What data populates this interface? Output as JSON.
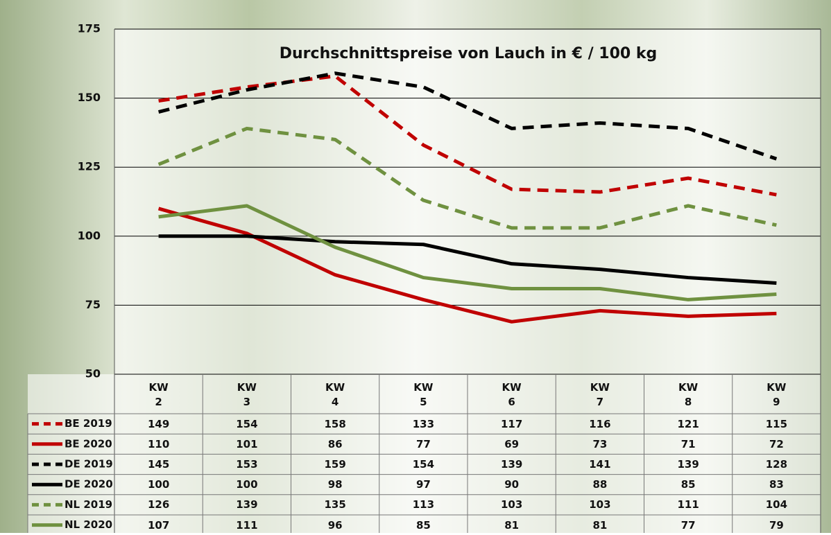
{
  "chart_data": {
    "type": "line",
    "title": "Durchschnittspreise von Lauch in € / 100 kg",
    "categories": [
      "KW\n2",
      "KW\n3",
      "KW\n4",
      "KW\n5",
      "KW\n6",
      "KW\n7",
      "KW\n8",
      "KW\n9"
    ],
    "series": [
      {
        "name": "BE 2019",
        "color": "#c00000",
        "dashed": true,
        "values": [
          149,
          154,
          158,
          133,
          117,
          116,
          121,
          115
        ]
      },
      {
        "name": "BE 2020",
        "color": "#c00000",
        "dashed": false,
        "values": [
          110,
          101,
          86,
          77,
          69,
          73,
          71,
          72
        ]
      },
      {
        "name": "DE 2019",
        "color": "#000000",
        "dashed": true,
        "values": [
          145,
          153,
          159,
          154,
          139,
          141,
          139,
          128
        ]
      },
      {
        "name": "DE 2020",
        "color": "#000000",
        "dashed": false,
        "values": [
          100,
          100,
          98,
          97,
          90,
          88,
          85,
          83
        ]
      },
      {
        "name": "NL 2019",
        "color": "#6f9140",
        "dashed": true,
        "values": [
          126,
          139,
          135,
          113,
          103,
          103,
          111,
          104
        ]
      },
      {
        "name": "NL 2020",
        "color": "#6f9140",
        "dashed": false,
        "values": [
          107,
          111,
          96,
          85,
          81,
          81,
          77,
          79
        ]
      }
    ],
    "ylim": [
      50,
      175
    ],
    "yticks": [
      50,
      75,
      100,
      125,
      150,
      175
    ],
    "grid": true
  }
}
